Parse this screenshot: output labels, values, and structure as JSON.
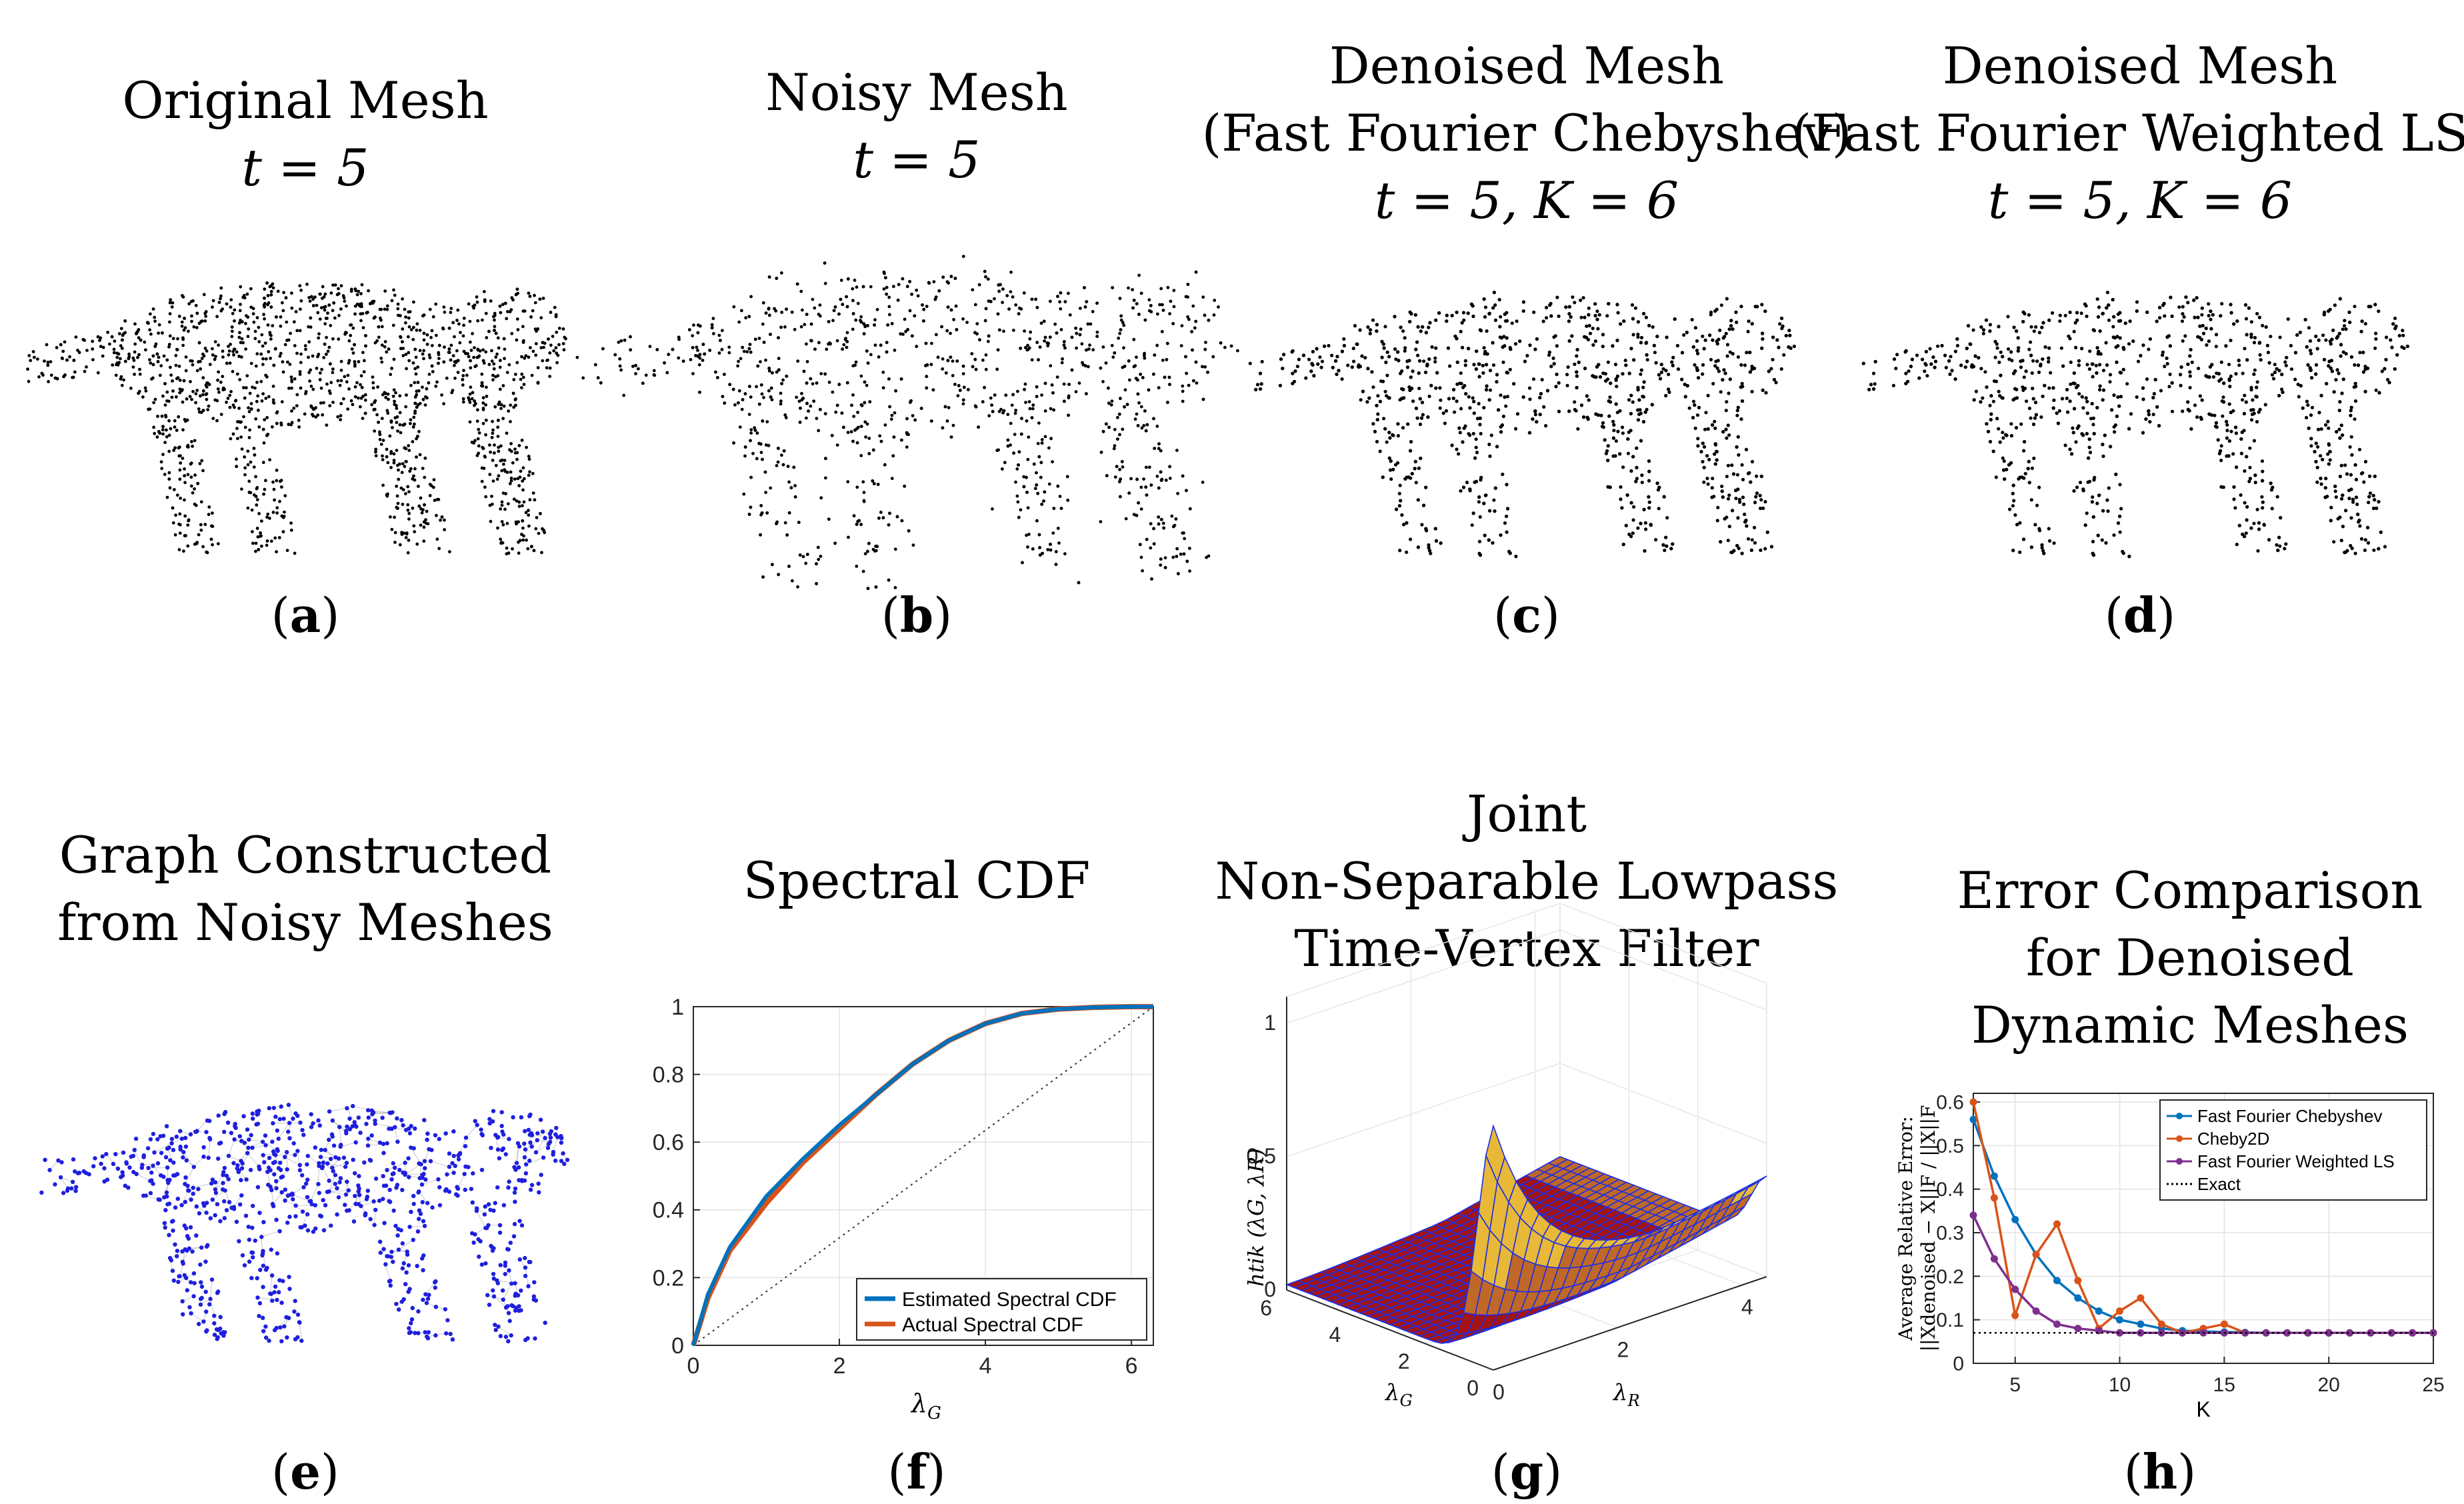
{
  "panels": {
    "a": {
      "title_line1": "Original Mesh",
      "title_line2": "t = 5",
      "label": "a"
    },
    "b": {
      "title_line1": "Noisy Mesh",
      "title_line2": "t = 5",
      "label": "b"
    },
    "c": {
      "title_line1": "Denoised Mesh",
      "title_line2": "(Fast Fourier Chebyshev)",
      "title_line3": "t = 5, K = 6",
      "label": "c"
    },
    "d": {
      "title_line1": "Denoised Mesh",
      "title_line2": "(Fast Fourier Weighted LS)",
      "title_line3": "t = 5, K = 6",
      "label": "d"
    },
    "e": {
      "title_line1": "Graph Constructed",
      "title_line2": "from Noisy Meshes",
      "label": "e"
    },
    "f": {
      "title_line1": "Spectral CDF",
      "label": "f"
    },
    "g": {
      "title_line1": "Joint",
      "title_line2": "Non-Separable Lowpass",
      "title_line3": "Time-Vertex Filter",
      "label": "g"
    },
    "h": {
      "title_line1": "Error Comparison",
      "title_line2": "for Denoised",
      "title_line3": "Dynamic Meshes",
      "label": "h"
    }
  },
  "colors": {
    "point": "#000000",
    "graph_blue": "#1f1fdd",
    "blue": "#0072bd",
    "orange": "#d95319",
    "purple": "#7e2f8e"
  },
  "chart_data": [
    {
      "id": "f",
      "type": "line",
      "title": "Spectral CDF",
      "xlabel": "λG",
      "ylabel": "",
      "xlim": [
        0,
        6.3
      ],
      "ylim": [
        0,
        1
      ],
      "xticks": [
        "0",
        "2",
        "4",
        "6"
      ],
      "yticks": [
        "0",
        "0.2",
        "0.4",
        "0.6",
        "0.8",
        "1"
      ],
      "legend": "bottom-right",
      "series": [
        {
          "name": "Estimated Spectral CDF",
          "color": "#0072bd",
          "x": [
            0,
            0.2,
            0.5,
            1.0,
            1.5,
            2.0,
            2.5,
            3.0,
            3.5,
            4.0,
            4.5,
            5.0,
            5.5,
            6.0,
            6.3
          ],
          "y": [
            0,
            0.15,
            0.29,
            0.44,
            0.55,
            0.65,
            0.74,
            0.83,
            0.9,
            0.95,
            0.98,
            0.993,
            0.998,
            1.0,
            1.0
          ]
        },
        {
          "name": "Actual Spectral CDF",
          "color": "#d95319",
          "x": [
            0,
            0.2,
            0.5,
            1.0,
            1.5,
            2.0,
            2.5,
            3.0,
            3.5,
            4.0,
            4.5,
            5.0,
            5.5,
            6.0,
            6.3
          ],
          "y": [
            0,
            0.14,
            0.28,
            0.42,
            0.54,
            0.64,
            0.74,
            0.83,
            0.9,
            0.95,
            0.98,
            0.993,
            0.998,
            1.0,
            1.0
          ]
        }
      ],
      "reference_line": {
        "name": "diagonal",
        "x": [
          0,
          6.3
        ],
        "y": [
          0,
          1
        ]
      }
    },
    {
      "id": "g",
      "type": "surface",
      "zlabel": "htik (λG, λR)",
      "xlabel": "λG",
      "ylabel": "λR",
      "zticks": [
        "0",
        "0.5",
        "1"
      ],
      "xticks": [
        "0",
        "2",
        "4",
        "6"
      ],
      "yticks": [
        "0",
        "2",
        "4"
      ]
    },
    {
      "id": "h",
      "type": "line",
      "xlabel": "K",
      "ylabel_line1": "Average Relative Error:",
      "ylabel_line2": "||Xdenoised − X||F / ||X||F",
      "xlim": [
        3,
        25
      ],
      "ylim": [
        0,
        0.62
      ],
      "xticks": [
        "5",
        "10",
        "15",
        "20",
        "25"
      ],
      "yticks": [
        "0",
        "0.1",
        "0.2",
        "0.3",
        "0.4",
        "0.5",
        "0.6"
      ],
      "legend": "top-right",
      "x": [
        3,
        4,
        5,
        6,
        7,
        8,
        9,
        10,
        11,
        12,
        13,
        14,
        15,
        16,
        17,
        18,
        19,
        20,
        21,
        22,
        23,
        24,
        25
      ],
      "series": [
        {
          "name": "Fast Fourier Chebyshev",
          "color": "#0072bd",
          "values": [
            0.56,
            0.43,
            0.33,
            0.25,
            0.19,
            0.15,
            0.12,
            0.1,
            0.09,
            0.08,
            0.075,
            0.073,
            0.072,
            0.071,
            0.07,
            0.07,
            0.07,
            0.07,
            0.07,
            0.07,
            0.07,
            0.07,
            0.07
          ]
        },
        {
          "name": "Cheby2D",
          "color": "#d95319",
          "values": [
            0.6,
            0.38,
            0.11,
            0.25,
            0.32,
            0.19,
            0.08,
            0.12,
            0.15,
            0.09,
            0.07,
            0.08,
            0.09,
            0.07,
            0.07,
            0.07,
            0.07,
            0.07,
            0.07,
            0.07,
            0.07,
            0.07,
            0.07
          ]
        },
        {
          "name": "Fast Fourier Weighted LS",
          "color": "#7e2f8e",
          "values": [
            0.34,
            0.24,
            0.17,
            0.12,
            0.09,
            0.08,
            0.075,
            0.07,
            0.07,
            0.07,
            0.07,
            0.07,
            0.07,
            0.07,
            0.07,
            0.07,
            0.07,
            0.07,
            0.07,
            0.07,
            0.07,
            0.07,
            0.07
          ]
        },
        {
          "name": "Exact",
          "color": "#000000",
          "dotted": true,
          "values": [
            0.07,
            0.07,
            0.07,
            0.07,
            0.07,
            0.07,
            0.07,
            0.07,
            0.07,
            0.07,
            0.07,
            0.07,
            0.07,
            0.07,
            0.07,
            0.07,
            0.07,
            0.07,
            0.07,
            0.07,
            0.07,
            0.07,
            0.07
          ]
        }
      ]
    }
  ]
}
